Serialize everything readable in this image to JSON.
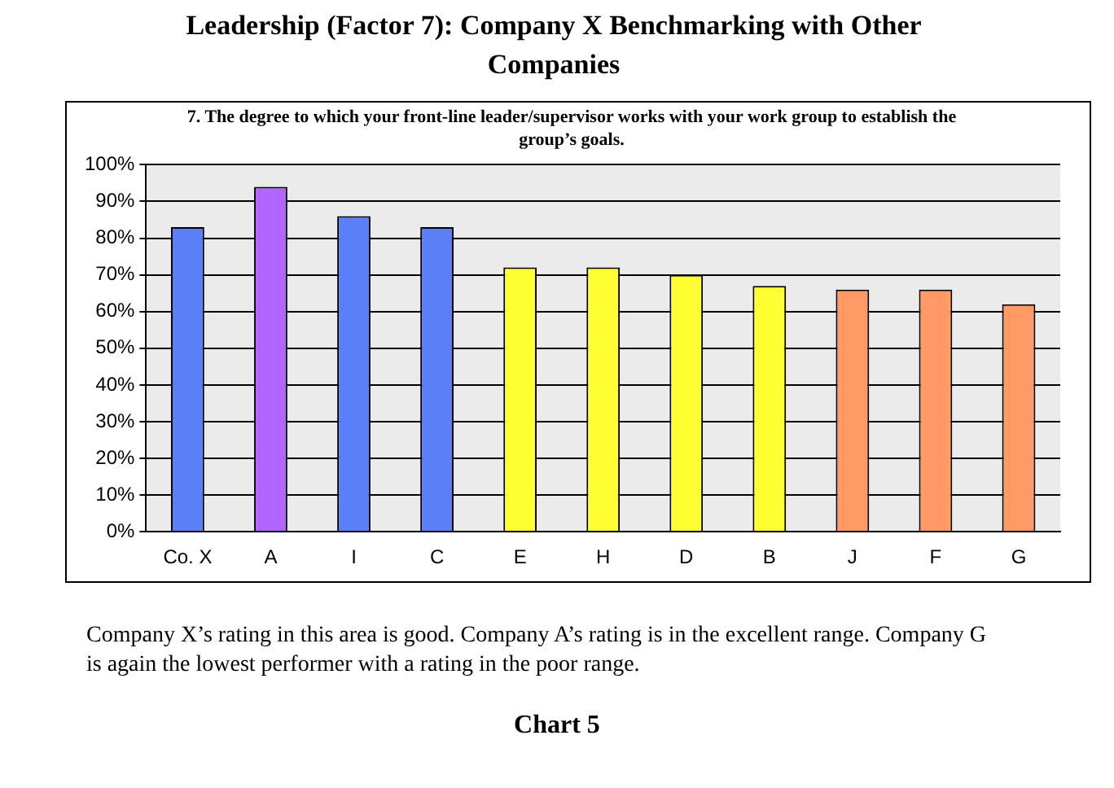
{
  "chart_data": {
    "type": "bar",
    "title": "Leadership (Factor 7):  Company X Benchmarking with Other Companies",
    "subtitle": "7.  The degree to which your front-line leader/supervisor works with your work group to establish the group’s goals.",
    "categories": [
      "Co. X",
      "A",
      "I",
      "C",
      "E",
      "H",
      "D",
      "B",
      "J",
      "F",
      "G"
    ],
    "values": [
      83,
      94,
      86,
      83,
      72,
      72,
      70,
      67,
      66,
      66,
      62
    ],
    "colors": [
      "#5b7ff7",
      "#b266ff",
      "#5b7ff7",
      "#5b7ff7",
      "#ffff33",
      "#ffff33",
      "#ffff33",
      "#ffff33",
      "#ff9966",
      "#ff9966",
      "#ff9966"
    ],
    "ylim": [
      0,
      100
    ],
    "yticks": [
      {
        "value": 0,
        "label": "0%"
      },
      {
        "value": 10,
        "label": "10%"
      },
      {
        "value": 20,
        "label": "20%"
      },
      {
        "value": 30,
        "label": "30%"
      },
      {
        "value": 40,
        "label": "40%"
      },
      {
        "value": 50,
        "label": "50%"
      },
      {
        "value": 60,
        "label": "60%"
      },
      {
        "value": 70,
        "label": "70%"
      },
      {
        "value": 80,
        "label": "80%"
      },
      {
        "value": 90,
        "label": "90%"
      },
      {
        "value": 100,
        "label": "100%"
      }
    ],
    "grid": "y",
    "legend": false,
    "annotations": [
      "Company X’s rating in this area is good.  Company A’s rating is in the excellent range.  Company G is again the lowest performer with a rating in the poor range.",
      "Chart 5"
    ]
  }
}
